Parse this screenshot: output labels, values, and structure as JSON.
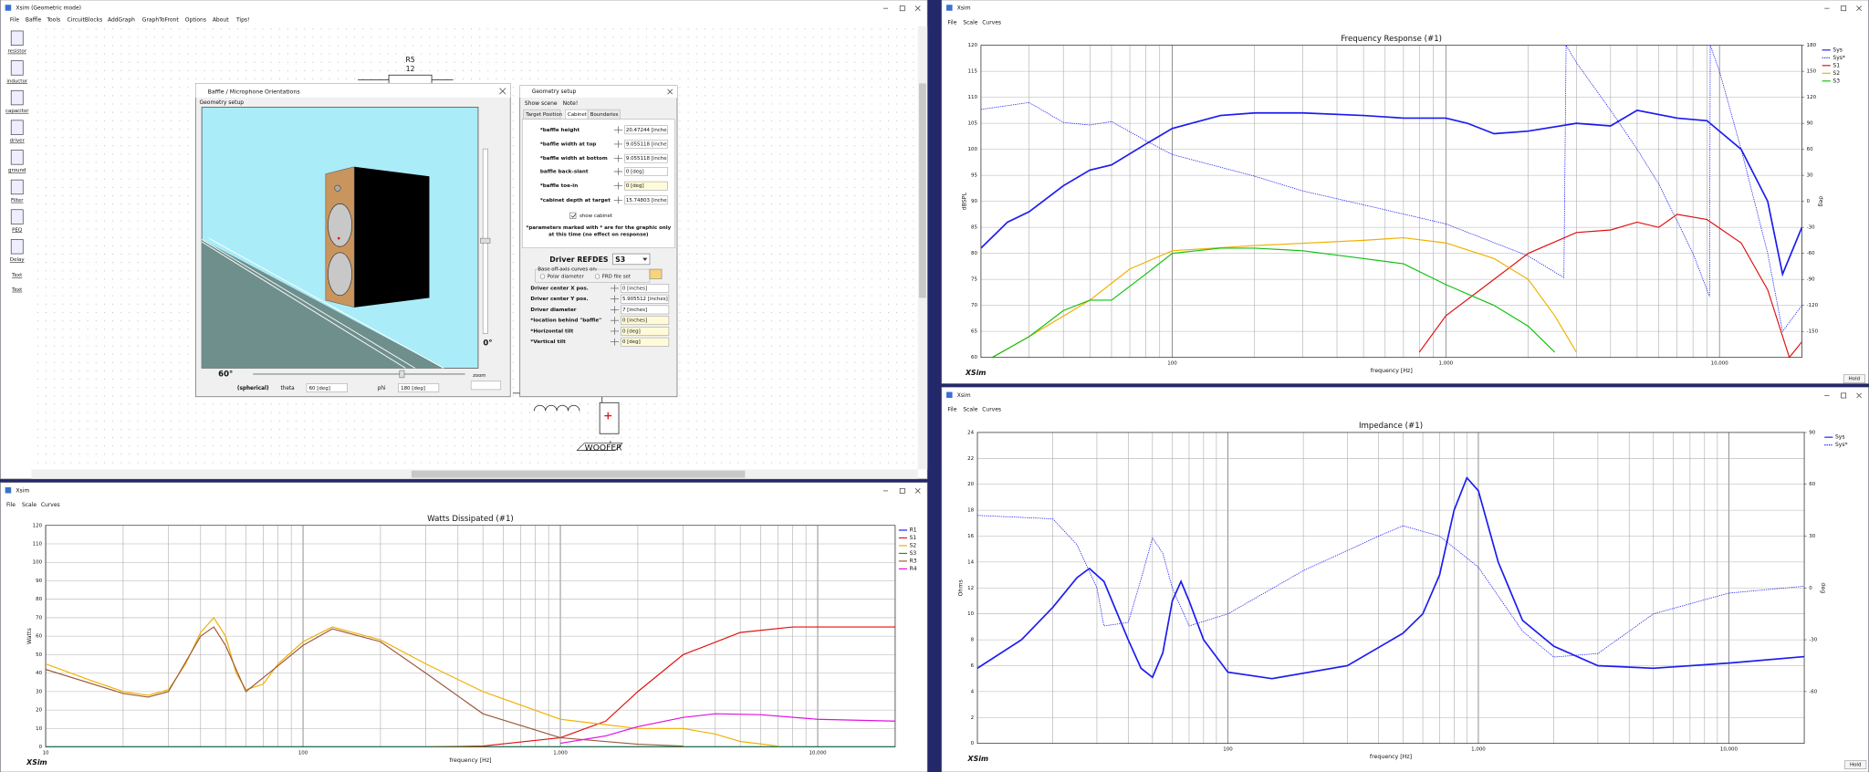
{
  "main_window": {
    "title": "Xsim (Geometric mode)",
    "menu": [
      "File",
      "Baffle",
      "Tools",
      "CircuitBlocks",
      "AddGraph",
      "GraphToFront",
      "Options",
      "About",
      "Tips!"
    ],
    "toolbar": [
      "resistor",
      "inductor",
      "capacitor",
      "driver",
      "ground",
      "Filter",
      "PEQ",
      "Delay",
      "Text",
      "Text"
    ],
    "schematic": {
      "resistor_name": "R5",
      "resistor_value": "12",
      "driver_name": "WOOFER"
    }
  },
  "baffle_dialog": {
    "title": "Baffle / Microphone Orientations",
    "menu": "Geometry setup",
    "vertical_angle": "0°",
    "horizontal_angle": "60°",
    "mode": "(spherical)",
    "theta_label": "theta",
    "theta_value": "60 [deg]",
    "phi_label": "phi",
    "phi_value": "180 [deg]",
    "zoom_label": "zoom"
  },
  "geometry_dialog": {
    "title": "Geometry setup",
    "menu": [
      "Show scene",
      "Note!"
    ],
    "tabs": [
      "Target Position",
      "Cabinet",
      "Boundaries"
    ],
    "cabinet_fields": [
      [
        "*baffle height",
        "20.47244 [inche"
      ],
      [
        "*baffle width at top",
        "9.055118 [inche"
      ],
      [
        "*baffle width at bottom",
        "9.055118 [inche"
      ],
      [
        "baffle back-slant",
        "0 [deg]"
      ],
      [
        "*baffle toe-in",
        "0 [deg]"
      ],
      [
        "*cabinet depth at target",
        "15.74803 [inche"
      ]
    ],
    "show_cabinet": "show cabinet",
    "note": [
      "*parameters marked with * are for the graphic only",
      "at this time (no effect on response)"
    ],
    "driver_label": "Driver REFDES",
    "driver_value": "S3",
    "offaxis_group": "Base off-axis curves on:",
    "offaxis_options": [
      "Polar diameter",
      "FRD file set"
    ],
    "driver_fields": [
      [
        "Driver center X pos.",
        "0 [inches]"
      ],
      [
        "Driver center Y pos.",
        "5.905512 [inches]"
      ],
      [
        "Driver diameter",
        "7 [inches]"
      ],
      [
        "*location behind \"baffle\"",
        "0 [inches]"
      ],
      [
        "*Horizontal tilt",
        "0 [deg]"
      ],
      [
        "*Vertical tilt",
        "0 [deg]"
      ]
    ]
  },
  "frequency_response": {
    "window_title": "Xsim",
    "menu": [
      "File",
      "Scale",
      "Curves"
    ],
    "logo": "XSim",
    "button": "Hold",
    "chart": {
      "type": "line",
      "title": "Frequency Response (#1)",
      "x_label": "frequency [Hz]",
      "y_label": "dBSPL",
      "y2_label": "deg",
      "log_x": true,
      "grid": true,
      "legend": "right",
      "xlim": [
        20,
        20000
      ],
      "xticks": [
        100,
        {
          "value": 1000,
          "label": "1,000"
        },
        {
          "value": 10000,
          "label": "10,000"
        }
      ],
      "ylim": [
        60,
        120
      ],
      "yticks": [
        60,
        65,
        70,
        75,
        80,
        85,
        90,
        95,
        100,
        105,
        110,
        115,
        120
      ],
      "y2lim": [
        -180,
        180
      ],
      "y2ticks": [
        -150,
        -120,
        -90,
        -60,
        -30,
        0,
        30,
        60,
        90,
        120,
        150,
        180
      ],
      "series": [
        {
          "name": "Sys",
          "color": "#1c1cf0",
          "style": "solid",
          "x": [
            20,
            25,
            30,
            40,
            50,
            60,
            80,
            100,
            150,
            200,
            300,
            500,
            700,
            1000,
            1200,
            1500,
            2000,
            3000,
            4000,
            5000,
            7000,
            9000,
            12000,
            15000,
            17000,
            20000
          ],
          "values": [
            81,
            86,
            88,
            93,
            96,
            97,
            101,
            104,
            106.5,
            107,
            107,
            106.5,
            106,
            106,
            105,
            103,
            103.5,
            105,
            104.5,
            107.5,
            106,
            105.5,
            100,
            90,
            76,
            85
          ]
        },
        {
          "name": "Sys*",
          "color": "#1c1cf0",
          "style": "dotted",
          "axis": "y2",
          "x": [
            20,
            30,
            40,
            50,
            60,
            80,
            100,
            200,
            300,
            500,
            1000,
            2000,
            2700,
            2750,
            3000,
            4000,
            5000,
            6000,
            8000,
            9200,
            9250,
            10000,
            12000,
            15000,
            17000,
            20000
          ],
          "values": [
            106,
            114,
            91,
            88,
            92,
            70,
            54,
            29,
            12,
            -4,
            -26,
            -63,
            -88,
            180,
            160,
            105,
            60,
            20,
            -60,
            -110,
            180,
            150,
            60,
            -60,
            -150,
            -120
          ]
        },
        {
          "name": "S1",
          "color": "#e01010",
          "style": "solid",
          "x": [
            800,
            1000,
            1500,
            2000,
            3000,
            4000,
            5000,
            6000,
            7000,
            9000,
            12000,
            15000,
            18000,
            20000
          ],
          "values": [
            61,
            68,
            75,
            80,
            84,
            84.5,
            86,
            85,
            87.5,
            86.5,
            82,
            73,
            60,
            63
          ]
        },
        {
          "name": "S2",
          "color": "#f0b000",
          "style": "solid",
          "x": [
            22,
            30,
            50,
            70,
            100,
            200,
            500,
            700,
            1000,
            1500,
            2000,
            2500,
            3000
          ],
          "values": [
            60,
            64,
            71,
            77,
            80.5,
            81.5,
            82.5,
            83,
            82,
            79,
            75,
            68,
            61
          ]
        },
        {
          "name": "S3",
          "color": "#10c010",
          "style": "solid",
          "x": [
            22,
            30,
            40,
            50,
            60,
            80,
            100,
            150,
            200,
            300,
            500,
            700,
            1000,
            1500,
            2000,
            2500
          ],
          "values": [
            60,
            64,
            69,
            71,
            71,
            76,
            80,
            81,
            81,
            80.5,
            79,
            78,
            74,
            70,
            66,
            61
          ]
        }
      ]
    }
  },
  "impedance": {
    "window_title": "Xsim",
    "menu": [
      "File",
      "Scale",
      "Curves"
    ],
    "logo": "XSim",
    "button": "Hold",
    "chart": {
      "type": "line",
      "title": "Impedance (#1)",
      "x_label": "frequency [Hz]",
      "y_label": "Ohms",
      "y2_label": "deg",
      "log_x": true,
      "grid": true,
      "legend": "right",
      "xlim": [
        10,
        20000
      ],
      "xticks": [
        100,
        {
          "value": 1000,
          "label": "1,000"
        },
        {
          "value": 10000,
          "label": "10,000"
        }
      ],
      "ylim": [
        0,
        24
      ],
      "yticks": [
        0,
        2,
        4,
        6,
        8,
        10,
        12,
        14,
        16,
        18,
        20,
        22,
        24
      ],
      "y2lim": [
        -90,
        90
      ],
      "y2ticks": [
        -60,
        -30,
        0,
        30,
        60,
        90
      ],
      "series": [
        {
          "name": "Sys",
          "color": "#1c1cf0",
          "style": "solid",
          "x": [
            10,
            15,
            20,
            25,
            28,
            32,
            40,
            45,
            50,
            55,
            60,
            65,
            70,
            80,
            100,
            150,
            300,
            500,
            600,
            700,
            800,
            900,
            1000,
            1200,
            1500,
            2000,
            3000,
            5000,
            10000,
            20000
          ],
          "values": [
            5.8,
            8,
            10.5,
            12.8,
            13.5,
            12.5,
            8,
            5.8,
            5.1,
            7,
            11,
            12.5,
            11,
            8,
            5.5,
            5,
            6,
            8.5,
            10,
            13,
            18,
            20.5,
            19.5,
            14,
            9.5,
            7.5,
            6,
            5.8,
            6.2,
            6.7
          ]
        },
        {
          "name": "Sys*",
          "color": "#1c1cf0",
          "style": "dotted",
          "axis": "y2",
          "x": [
            10,
            20,
            25,
            30,
            32,
            40,
            45,
            50,
            55,
            60,
            70,
            100,
            200,
            400,
            500,
            700,
            1000,
            1500,
            2000,
            3000,
            5000,
            10000,
            20000
          ],
          "values": [
            42,
            40,
            25,
            0,
            -22,
            -20,
            5,
            29,
            20,
            0,
            -22,
            -15,
            10,
            30,
            36,
            30,
            12,
            -25,
            -40,
            -38,
            -15,
            -3,
            1
          ]
        }
      ]
    }
  },
  "watts": {
    "window_title": "Xsim",
    "menu": [
      "File",
      "Scale",
      "Curves"
    ],
    "logo": "XSim",
    "chart": {
      "type": "line",
      "title": "Watts Dissipated (#1)",
      "x_label": "frequency [Hz]",
      "y_label": "Watts",
      "log_x": true,
      "grid": true,
      "legend": "right",
      "xlim": [
        10,
        20000
      ],
      "xticks": [
        10,
        100,
        {
          "value": 1000,
          "label": "1,000"
        },
        {
          "value": 10000,
          "label": "10,000"
        }
      ],
      "ylim": [
        0,
        120
      ],
      "yticks": [
        0,
        10,
        20,
        30,
        40,
        50,
        60,
        70,
        80,
        90,
        100,
        110,
        120
      ],
      "series": [
        {
          "name": "R1",
          "color": "#1c1cf0",
          "style": "solid",
          "x": [
            10,
            20000
          ],
          "values": [
            0,
            0
          ]
        },
        {
          "name": "S1",
          "color": "#e01010",
          "style": "solid",
          "x": [
            300,
            500,
            1000,
            1500,
            2000,
            3000,
            5000,
            8000,
            20000
          ],
          "values": [
            0,
            0.5,
            5,
            14,
            30,
            50,
            62,
            65,
            65
          ]
        },
        {
          "name": "S2",
          "color": "#f0b000",
          "style": "solid",
          "x": [
            10,
            15,
            20,
            25,
            30,
            35,
            40,
            45,
            50,
            55,
            60,
            70,
            80,
            100,
            130,
            200,
            300,
            500,
            1000,
            2000,
            3000,
            4000,
            5000,
            7000
          ],
          "values": [
            45,
            36,
            30,
            28,
            31,
            45,
            62,
            70,
            60,
            40,
            31,
            34,
            45,
            57,
            65,
            58,
            45,
            30,
            15,
            10,
            10,
            7,
            3,
            0.5
          ]
        },
        {
          "name": "S3",
          "color": "#10a010",
          "style": "solid",
          "x": [
            10,
            20000
          ],
          "values": [
            0,
            0
          ]
        },
        {
          "name": "R3",
          "color": "#9c5a3c",
          "style": "solid",
          "x": [
            10,
            20,
            25,
            30,
            40,
            45,
            50,
            60,
            80,
            100,
            130,
            200,
            300,
            500,
            1000,
            2000,
            3000
          ],
          "values": [
            42,
            29,
            27,
            30,
            60,
            65,
            55,
            30,
            44,
            55,
            64,
            57,
            40,
            18,
            5,
            1.5,
            0.5
          ]
        },
        {
          "name": "R4",
          "color": "#e010e0",
          "style": "solid",
          "x": [
            1000,
            1500,
            2000,
            3000,
            4000,
            6000,
            10000,
            20000
          ],
          "values": [
            2,
            6,
            11,
            16,
            18,
            17.5,
            15,
            14
          ]
        }
      ]
    }
  }
}
